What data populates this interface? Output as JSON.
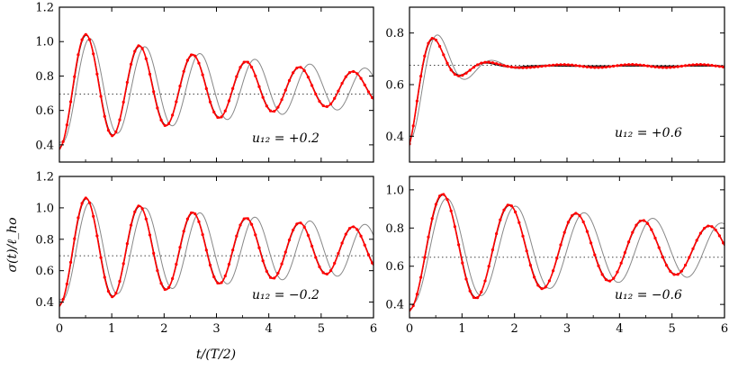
{
  "chart_data": [
    {
      "type": "line",
      "annotation": "u₁₂ = +0.2",
      "xlim": [
        0,
        6
      ],
      "ylim": [
        0.3,
        1.2
      ],
      "xticks": [
        0,
        1,
        2,
        3,
        4,
        5,
        6
      ],
      "yticks": [
        0.4,
        0.6,
        0.8,
        1.0,
        1.2
      ],
      "ytick_labels": [
        "0.4",
        "0.6",
        "0.8",
        "1.0",
        "1.2"
      ],
      "show_xtick_labels": false,
      "baseline": 0.695,
      "model": {
        "start": 0.38,
        "eq": 0.73,
        "amp": 0.45,
        "decay": 0.23,
        "period": 1.02,
        "lag": 0.0
      },
      "grid": false,
      "series": [
        {
          "color": "#ff0000",
          "style": "dots-line"
        },
        {
          "color": "#000000",
          "style": "line"
        },
        {
          "color": "#888888",
          "style": "line"
        }
      ]
    },
    {
      "type": "line",
      "annotation": "u₁₂ = +0.6",
      "xlim": [
        0,
        6
      ],
      "ylim": [
        0.3,
        0.9
      ],
      "xticks": [
        0,
        1,
        2,
        3,
        4,
        5,
        6
      ],
      "yticks": [
        0.4,
        0.6,
        0.8
      ],
      "ytick_labels": [
        "0.4",
        "0.6",
        "0.8"
      ],
      "show_xtick_labels": false,
      "baseline": 0.675,
      "model": {
        "start": 0.37,
        "eq": 0.672,
        "amp": 0.21,
        "decay": 2.2,
        "period": 1.0,
        "lag": 0.0
      },
      "grid": false,
      "series": [
        {
          "color": "#ff0000",
          "style": "dots-line"
        },
        {
          "color": "#000000",
          "style": "line"
        },
        {
          "color": "#888888",
          "style": "line"
        }
      ]
    },
    {
      "type": "line",
      "annotation": "u₁₂ = −0.2",
      "xlim": [
        0,
        6
      ],
      "ylim": [
        0.3,
        1.2
      ],
      "xticks": [
        0,
        1,
        2,
        3,
        4,
        5,
        6
      ],
      "yticks": [
        0.4,
        0.6,
        0.8,
        1.0,
        1.2
      ],
      "ytick_labels": [
        "0.4",
        "0.6",
        "0.8",
        "1.0",
        "1.2"
      ],
      "show_xtick_labels": true,
      "baseline": 0.695,
      "model": {
        "start": 0.38,
        "eq": 0.735,
        "amp": 0.45,
        "decay": 0.16,
        "period": 1.02,
        "lag": 0.0
      },
      "grid": false,
      "series": [
        {
          "color": "#ff0000",
          "style": "dots-line"
        },
        {
          "color": "#000000",
          "style": "line"
        },
        {
          "color": "#888888",
          "style": "line"
        }
      ]
    },
    {
      "type": "line",
      "annotation": "u₁₂ = −0.6",
      "xlim": [
        0,
        6
      ],
      "ylim": [
        0.33,
        1.07
      ],
      "xticks": [
        0,
        1,
        2,
        3,
        4,
        5,
        6
      ],
      "yticks": [
        0.4,
        0.6,
        0.8,
        1.0
      ],
      "ytick_labels": [
        "0.4",
        "0.6",
        "0.8",
        "1.0"
      ],
      "show_xtick_labels": true,
      "baseline": 0.647,
      "model": {
        "start": 0.37,
        "eq": 0.69,
        "amp": 0.35,
        "decay": 0.17,
        "period": 1.27,
        "lag": 0.0
      },
      "grid": false,
      "series": [
        {
          "color": "#ff0000",
          "style": "dots-line"
        },
        {
          "color": "#000000",
          "style": "line"
        },
        {
          "color": "#888888",
          "style": "line"
        }
      ]
    }
  ],
  "xlabel": "t/(T/2)",
  "ylabel": "σ(t)/ℓ_ho",
  "xtick_labels": [
    "0",
    "1",
    "2",
    "3",
    "4",
    "5",
    "6"
  ]
}
